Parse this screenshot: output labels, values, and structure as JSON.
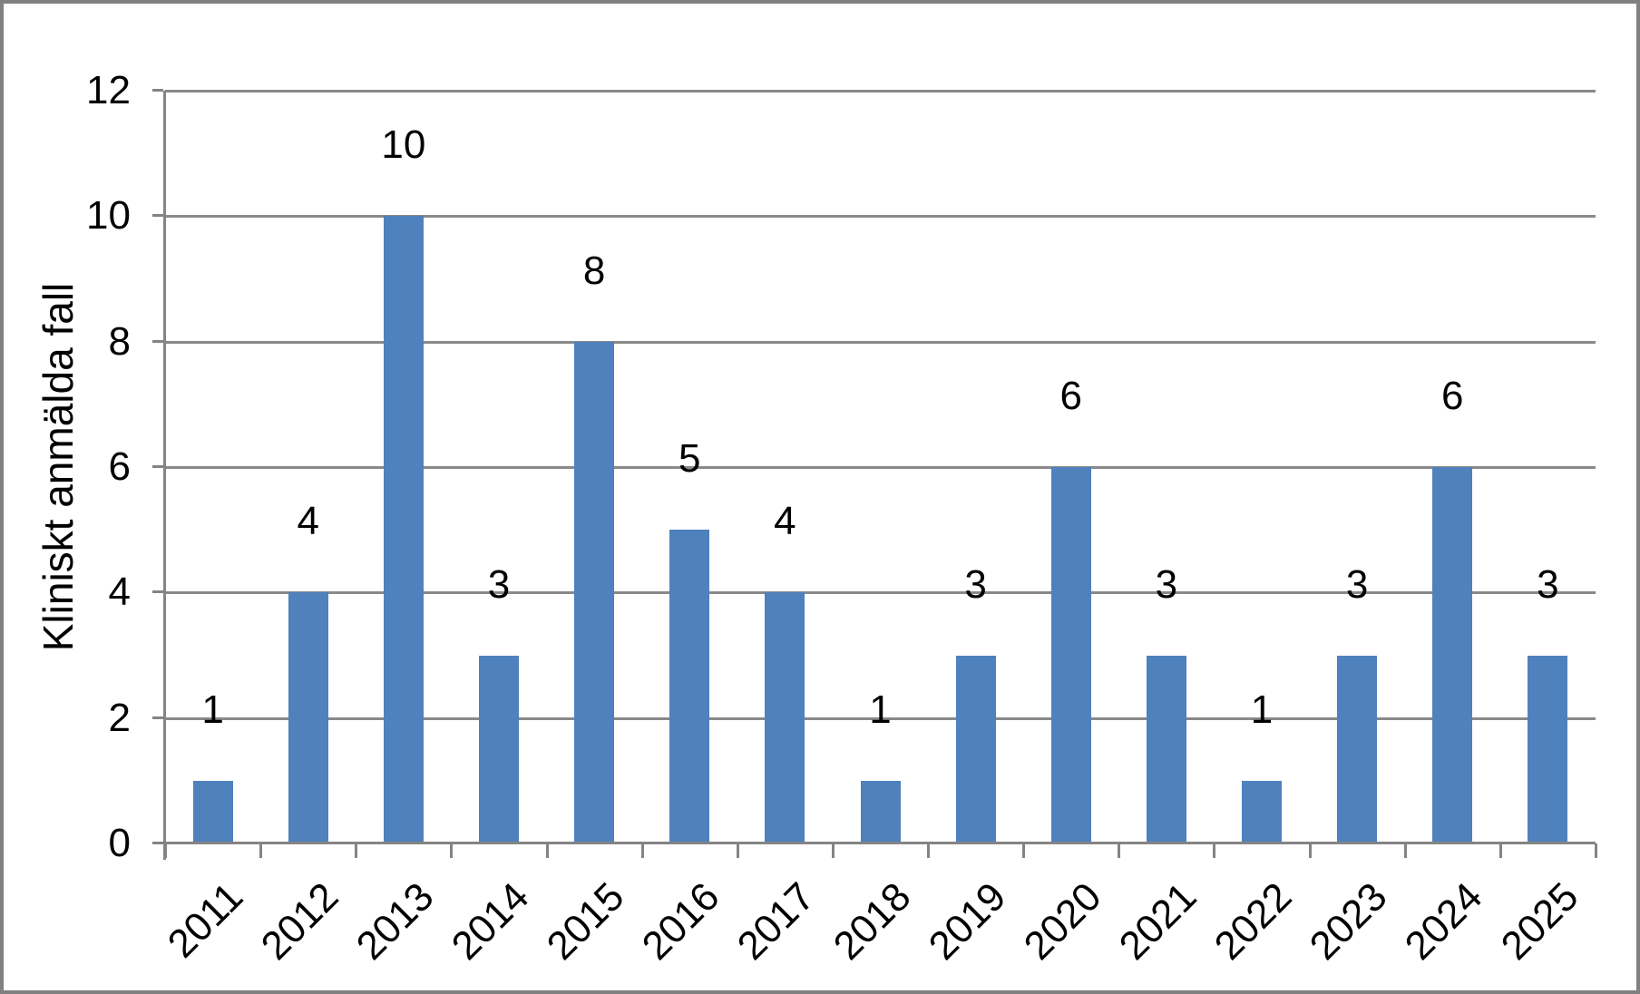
{
  "chart_data": {
    "type": "bar",
    "title": "",
    "categories": [
      "2011",
      "2012",
      "2013",
      "2014",
      "2015",
      "2016",
      "2017",
      "2018",
      "2019",
      "2020",
      "2021",
      "2022",
      "2023",
      "2024",
      "2025"
    ],
    "values": [
      1,
      4,
      10,
      3,
      8,
      5,
      4,
      1,
      3,
      6,
      3,
      1,
      3,
      6,
      3
    ],
    "data_labels": [
      "1",
      "4",
      "10",
      "3",
      "8",
      "5",
      "4",
      "1",
      "3",
      "6",
      "3",
      "1",
      "3",
      "6",
      "3"
    ],
    "xlabel": "",
    "ylabel": "Kliniskt anmälda fall",
    "ylim": [
      0,
      12
    ],
    "ytick_step": 2,
    "yticks": [
      "0",
      "2",
      "4",
      "6",
      "8",
      "10",
      "12"
    ],
    "grid": "horizontal-major",
    "legend": "none",
    "bar_color": "#4F81BD",
    "gridline_color": "#898989",
    "axis_color": "#848484",
    "text_color": "#000000",
    "border_color": "#808080",
    "background_color": "#ffffff"
  }
}
